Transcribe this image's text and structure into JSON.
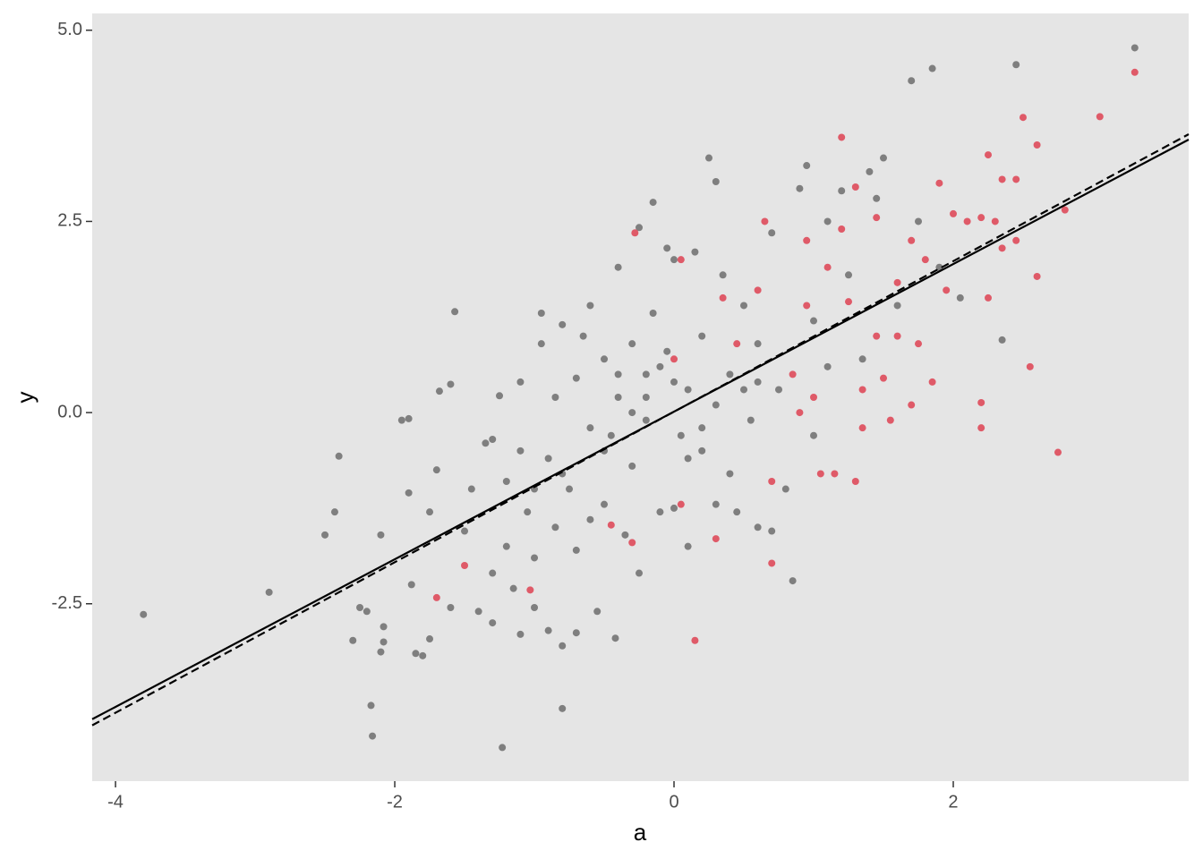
{
  "chart_data": {
    "type": "scatter",
    "x_label": "a",
    "y_label": "y",
    "xlim": [
      -4.167,
      3.686
    ],
    "ylim": [
      -4.82,
      5.22
    ],
    "xticks": [
      -4,
      -2,
      0,
      2
    ],
    "yticks": [
      {
        "value": 5,
        "label": "5.0"
      },
      2.5,
      {
        "value": 0,
        "label": "0.0"
      },
      -2.5
    ],
    "grid": false,
    "background": "#e5e5e5",
    "point_radius": 4,
    "series": [
      {
        "color": "#7f7f7f",
        "x": [
          -3.8,
          -2.9,
          -2.5,
          -2.43,
          -2.4,
          -2.3,
          -2.25,
          -2.2,
          -2.17,
          -2.16,
          -2.1,
          -2.08,
          -2.08,
          -2.1,
          -1.95,
          -1.9,
          -1.9,
          -1.88,
          -1.85,
          -1.8,
          -1.75,
          -1.75,
          -1.7,
          -1.68,
          -1.6,
          -1.57,
          -1.6,
          -1.5,
          -1.45,
          -1.4,
          -1.35,
          -1.3,
          -1.3,
          -1.3,
          -1.25,
          -1.2,
          -1.2,
          -1.23,
          -1.15,
          -1.1,
          -1.1,
          -1.1,
          -1.05,
          -1.0,
          -1.0,
          -0.95,
          -0.95,
          -0.9,
          -0.9,
          -0.85,
          -0.85,
          -0.8,
          -0.8,
          -0.8,
          -0.75,
          -0.7,
          -0.7,
          -0.7,
          -0.65,
          -0.6,
          -0.6,
          -0.55,
          -0.5,
          -0.5,
          -0.45,
          -0.42,
          -0.4,
          -0.4,
          -0.35,
          -0.3,
          -0.3,
          -0.25,
          -0.25,
          -0.2,
          -0.2,
          -0.15,
          -0.15,
          -0.1,
          -0.05,
          -0.05,
          0,
          0,
          0.05,
          0.1,
          0.1,
          0.15,
          0.2,
          0.2,
          0.25,
          0.3,
          0.3,
          0.35,
          0.4,
          0.45,
          0.5,
          0.55,
          0.6,
          0.6,
          0.7,
          0.7,
          0.75,
          0.8,
          0.85,
          0.9,
          0.95,
          1.0,
          1.0,
          1.1,
          1.1,
          1.2,
          1.25,
          1.35,
          1.4,
          1.45,
          1.5,
          1.6,
          1.7,
          1.75,
          1.85,
          1.9,
          2.05,
          2.35,
          2.45,
          3.3,
          -0.2,
          -0.1,
          0.0,
          0.3,
          -0.5,
          -0.8,
          -1.0,
          0.5,
          0.2,
          -0.3,
          0.1,
          -0.6,
          0.4,
          -0.4,
          0.6
        ],
        "y": [
          -2.64,
          -2.35,
          -1.6,
          -1.3,
          -0.57,
          -2.98,
          -2.55,
          -2.6,
          -3.83,
          -4.23,
          -3.13,
          -3.0,
          -2.8,
          -1.6,
          -0.1,
          -0.08,
          -1.05,
          -2.25,
          -3.15,
          -3.18,
          -2.96,
          -1.3,
          -0.75,
          0.28,
          0.37,
          1.32,
          -2.55,
          -1.55,
          -1.0,
          -2.6,
          -0.4,
          -2.1,
          -0.35,
          -2.75,
          0.22,
          -0.9,
          -1.75,
          -4.38,
          -2.3,
          -2.9,
          -0.5,
          0.4,
          -1.3,
          -2.55,
          -1.9,
          1.3,
          0.9,
          -0.6,
          -2.85,
          -1.5,
          0.2,
          -3.87,
          -3.05,
          1.15,
          -1.0,
          -1.8,
          0.45,
          -2.88,
          1.0,
          -0.2,
          1.4,
          -2.6,
          -1.2,
          0.7,
          -0.3,
          -2.95,
          1.9,
          0.2,
          -1.6,
          -0.7,
          0.9,
          -2.1,
          2.42,
          -0.1,
          0.5,
          2.75,
          1.3,
          -1.3,
          2.15,
          0.8,
          2.0,
          -1.25,
          -0.3,
          0.3,
          -1.75,
          2.1,
          -0.5,
          1.0,
          3.33,
          3.02,
          -1.2,
          1.8,
          0.5,
          -1.3,
          1.4,
          -0.1,
          -1.5,
          0.9,
          -1.55,
          2.35,
          0.3,
          -1.0,
          -2.2,
          2.93,
          3.23,
          1.2,
          -0.3,
          0.6,
          2.5,
          2.9,
          1.8,
          0.7,
          3.15,
          2.8,
          3.33,
          1.4,
          4.34,
          2.5,
          4.5,
          1.9,
          1.5,
          0.95,
          4.55,
          4.77,
          0.2,
          0.6,
          0.4,
          0.1,
          -0.5,
          -0.8,
          -1.0,
          0.3,
          -0.2,
          0.0,
          -0.6,
          -1.4,
          -0.8,
          0.5,
          0.4
        ]
      },
      {
        "color": "#df5a68",
        "x": [
          -1.7,
          -1.5,
          -1.03,
          -0.45,
          -0.3,
          -0.28,
          0,
          0.05,
          0.05,
          0.15,
          0.3,
          0.35,
          0.45,
          0.6,
          0.65,
          0.7,
          0.7,
          0.85,
          0.95,
          0.95,
          1.0,
          1.05,
          1.1,
          1.15,
          1.2,
          1.2,
          1.25,
          1.3,
          1.35,
          1.35,
          1.45,
          1.45,
          1.5,
          1.55,
          1.6,
          1.7,
          1.7,
          1.75,
          1.8,
          1.85,
          1.9,
          1.95,
          2.0,
          2.1,
          2.2,
          2.2,
          2.2,
          2.25,
          2.25,
          2.3,
          2.35,
          2.35,
          2.45,
          2.45,
          2.5,
          2.55,
          2.6,
          2.6,
          2.75,
          2.8,
          3.05,
          3.3,
          1.3,
          0.9,
          1.6
        ],
        "y": [
          -2.42,
          -2.0,
          -2.32,
          -1.47,
          -1.7,
          2.35,
          0.7,
          2.0,
          -1.2,
          -2.98,
          -1.65,
          1.5,
          0.9,
          1.6,
          2.5,
          -1.97,
          -0.9,
          0.5,
          2.25,
          1.4,
          0.2,
          -0.8,
          1.9,
          -0.8,
          3.6,
          2.4,
          1.45,
          2.95,
          0.3,
          -0.2,
          2.55,
          1.0,
          0.45,
          -0.1,
          1.7,
          0.1,
          2.25,
          0.9,
          2.0,
          0.4,
          3.0,
          1.6,
          2.6,
          2.5,
          2.55,
          0.13,
          -0.2,
          1.5,
          3.37,
          2.5,
          3.05,
          2.15,
          3.05,
          2.25,
          3.86,
          0.6,
          3.5,
          1.78,
          -0.52,
          2.65,
          3.87,
          4.45,
          -0.9,
          0.0,
          1.0
        ]
      }
    ],
    "lines": [
      {
        "style": "solid",
        "color": "#000000",
        "x": [
          -4.167,
          3.686
        ],
        "y": [
          -4.01,
          3.57
        ]
      },
      {
        "style": "dashed",
        "color": "#000000",
        "x": [
          -4.167,
          3.686
        ],
        "y": [
          -4.09,
          3.64
        ]
      }
    ]
  }
}
